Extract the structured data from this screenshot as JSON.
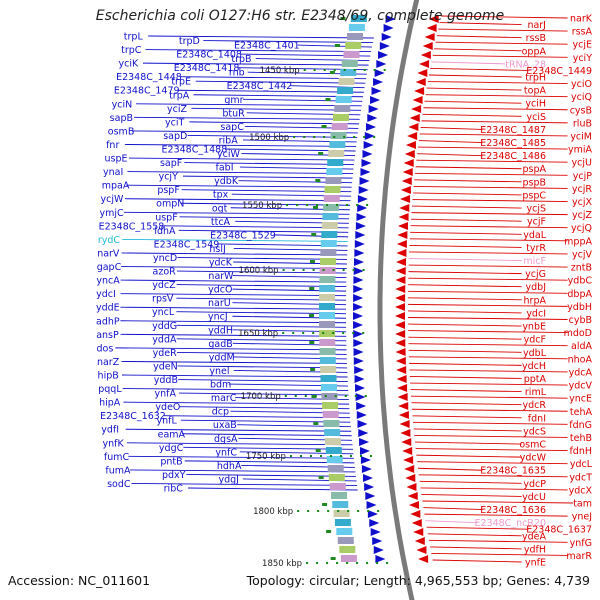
{
  "title": "Escherichia coli O127:H6 str. E2348/69, complete genome",
  "accession_label": "Accession: NC_011601",
  "summary_label": "Topology: circular; Length: 4,965,553 bp; Genes: 4,739",
  "colors": {
    "forward_strand": "#1010cc",
    "reverse_strand": "#dd0000",
    "rna_gene": "#22b8dd",
    "ncrna_gene": "#ee99cc",
    "backbone": "#7a7a7a",
    "tick_dot": "#118811"
  },
  "ticks": [
    {
      "label": "1450 kbp"
    },
    {
      "label": "1500 kbp"
    },
    {
      "label": "1550 kbp"
    },
    {
      "label": "1600 kbp"
    },
    {
      "label": "1650 kbp"
    },
    {
      "label": "1700 kbp"
    },
    {
      "label": "1750 kbp"
    },
    {
      "label": "1800 kbp"
    },
    {
      "label": "1850 kbp"
    }
  ],
  "forward_genes": [
    {
      "label": "trpL",
      "color": "blue"
    },
    {
      "label": "trpD",
      "color": "blue"
    },
    {
      "label": "E2348C_1401",
      "color": "blue"
    },
    {
      "label": "trpC",
      "color": "blue"
    },
    {
      "label": "E2348C_1408",
      "color": "blue"
    },
    {
      "label": "trpB",
      "color": "blue"
    },
    {
      "label": "yciK",
      "color": "blue"
    },
    {
      "label": "E2348C_1418",
      "color": "blue"
    },
    {
      "label": "rnb",
      "color": "blue"
    },
    {
      "label": "E2348C_1448",
      "color": "blue"
    },
    {
      "label": "trpE",
      "color": "blue"
    },
    {
      "label": "E2348C_1442",
      "color": "blue"
    },
    {
      "label": "E2348C_1479",
      "color": "blue"
    },
    {
      "label": "trpA",
      "color": "blue"
    },
    {
      "label": "gmr",
      "color": "blue"
    },
    {
      "label": "yciN",
      "color": "blue"
    },
    {
      "label": "yciZ",
      "color": "blue"
    },
    {
      "label": "btuR",
      "color": "blue"
    },
    {
      "label": "sapB",
      "color": "blue"
    },
    {
      "label": "yciT",
      "color": "blue"
    },
    {
      "label": "sapC",
      "color": "blue"
    },
    {
      "label": "osmB",
      "color": "blue"
    },
    {
      "label": "sapD",
      "color": "blue"
    },
    {
      "label": "ribA",
      "color": "blue"
    },
    {
      "label": "fnr",
      "color": "blue"
    },
    {
      "label": "E2348C_1488",
      "color": "blue"
    },
    {
      "label": "yciW",
      "color": "blue"
    },
    {
      "label": "uspE",
      "color": "blue"
    },
    {
      "label": "sapF",
      "color": "blue"
    },
    {
      "label": "fabI",
      "color": "blue"
    },
    {
      "label": "ynaI",
      "color": "blue"
    },
    {
      "label": "ycjY",
      "color": "blue"
    },
    {
      "label": "ydbK",
      "color": "blue"
    },
    {
      "label": "mpaA",
      "color": "blue"
    },
    {
      "label": "pspF",
      "color": "blue"
    },
    {
      "label": "tpx",
      "color": "blue"
    },
    {
      "label": "ycjW",
      "color": "blue"
    },
    {
      "label": "ompN",
      "color": "blue"
    },
    {
      "label": "ogt",
      "color": "blue"
    },
    {
      "label": "ymjC",
      "color": "blue"
    },
    {
      "label": "uspF",
      "color": "blue"
    },
    {
      "label": "ttcA",
      "color": "blue"
    },
    {
      "label": "E2348C_1558",
      "color": "blue"
    },
    {
      "label": "ldhA",
      "color": "blue"
    },
    {
      "label": "E2348C_1529",
      "color": "blue"
    },
    {
      "label": "rydC",
      "color": "cyan"
    },
    {
      "label": "E2348C_1549",
      "color": "blue"
    },
    {
      "label": "hslJ",
      "color": "blue"
    },
    {
      "label": "narV",
      "color": "blue"
    },
    {
      "label": "yncD",
      "color": "blue"
    },
    {
      "label": "ydcK",
      "color": "blue"
    },
    {
      "label": "gapC",
      "color": "blue"
    },
    {
      "label": "azoR",
      "color": "blue"
    },
    {
      "label": "narW",
      "color": "blue"
    },
    {
      "label": "yncA",
      "color": "blue"
    },
    {
      "label": "ydcZ",
      "color": "blue"
    },
    {
      "label": "ydcO",
      "color": "blue"
    },
    {
      "label": "ydcI",
      "color": "blue"
    },
    {
      "label": "rpsV",
      "color": "blue"
    },
    {
      "label": "narU",
      "color": "blue"
    },
    {
      "label": "yddE",
      "color": "blue"
    },
    {
      "label": "yncL",
      "color": "blue"
    },
    {
      "label": "yncJ",
      "color": "blue"
    },
    {
      "label": "adhP",
      "color": "blue"
    },
    {
      "label": "yddG",
      "color": "blue"
    },
    {
      "label": "yddH",
      "color": "blue"
    },
    {
      "label": "ansP",
      "color": "blue"
    },
    {
      "label": "yddA",
      "color": "blue"
    },
    {
      "label": "gadB",
      "color": "blue"
    },
    {
      "label": "dos",
      "color": "blue"
    },
    {
      "label": "ydeR",
      "color": "blue"
    },
    {
      "label": "yddM",
      "color": "blue"
    },
    {
      "label": "narZ",
      "color": "blue"
    },
    {
      "label": "ydeN",
      "color": "blue"
    },
    {
      "label": "ynel",
      "color": "blue"
    },
    {
      "label": "hipB",
      "color": "blue"
    },
    {
      "label": "yddB",
      "color": "blue"
    },
    {
      "label": "bdm",
      "color": "blue"
    },
    {
      "label": "pqqL",
      "color": "blue"
    },
    {
      "label": "ynfA",
      "color": "blue"
    },
    {
      "label": "marC",
      "color": "blue"
    },
    {
      "label": "hipA",
      "color": "blue"
    },
    {
      "label": "ydeO",
      "color": "blue"
    },
    {
      "label": "dcp",
      "color": "blue"
    },
    {
      "label": "E2348C_1632",
      "color": "blue"
    },
    {
      "label": "ynfL",
      "color": "blue"
    },
    {
      "label": "uxaB",
      "color": "blue"
    },
    {
      "label": "ydfI",
      "color": "blue"
    },
    {
      "label": "eamA",
      "color": "blue"
    },
    {
      "label": "dgsA",
      "color": "blue"
    },
    {
      "label": "ynfK",
      "color": "blue"
    },
    {
      "label": "ydgC",
      "color": "blue"
    },
    {
      "label": "ynfC",
      "color": "blue"
    },
    {
      "label": "fumC",
      "color": "blue"
    },
    {
      "label": "pntB",
      "color": "blue"
    },
    {
      "label": "hdhA",
      "color": "blue"
    },
    {
      "label": "fumA",
      "color": "blue"
    },
    {
      "label": "pdxY",
      "color": "blue"
    },
    {
      "label": "ydgJ",
      "color": "blue"
    },
    {
      "label": "sodC",
      "color": "blue"
    },
    {
      "label": "ribC",
      "color": "blue"
    }
  ],
  "reverse_genes": [
    {
      "label": "narK",
      "color": "red"
    },
    {
      "label": "narJ",
      "color": "red"
    },
    {
      "label": "rssA",
      "color": "red"
    },
    {
      "label": "rssB",
      "color": "red"
    },
    {
      "label": "ycjE",
      "color": "red"
    },
    {
      "label": "oppA",
      "color": "red"
    },
    {
      "label": "yciY",
      "color": "red"
    },
    {
      "label": "tRNA_28",
      "color": "pink"
    },
    {
      "label": "E2348C_1449",
      "color": "red"
    },
    {
      "label": "trpH",
      "color": "red"
    },
    {
      "label": "yciO",
      "color": "red"
    },
    {
      "label": "topA",
      "color": "red"
    },
    {
      "label": "yciQ",
      "color": "red"
    },
    {
      "label": "yciH",
      "color": "red"
    },
    {
      "label": "cysB",
      "color": "red"
    },
    {
      "label": "yciS",
      "color": "red"
    },
    {
      "label": "rluB",
      "color": "red"
    },
    {
      "label": "E2348C_1487",
      "color": "red"
    },
    {
      "label": "yciM",
      "color": "red"
    },
    {
      "label": "E2348C_1485",
      "color": "red"
    },
    {
      "label": "ymiA",
      "color": "red"
    },
    {
      "label": "E2348C_1486",
      "color": "red"
    },
    {
      "label": "ycjU",
      "color": "red"
    },
    {
      "label": "pspA",
      "color": "red"
    },
    {
      "label": "ycjP",
      "color": "red"
    },
    {
      "label": "pspB",
      "color": "red"
    },
    {
      "label": "ycjR",
      "color": "red"
    },
    {
      "label": "pspC",
      "color": "red"
    },
    {
      "label": "ycjX",
      "color": "red"
    },
    {
      "label": "ycjS",
      "color": "red"
    },
    {
      "label": "ycjZ",
      "color": "red"
    },
    {
      "label": "ycjF",
      "color": "red"
    },
    {
      "label": "ycjQ",
      "color": "red"
    },
    {
      "label": "ydaL",
      "color": "red"
    },
    {
      "label": "mppA",
      "color": "red"
    },
    {
      "label": "tyrR",
      "color": "red"
    },
    {
      "label": "ycjV",
      "color": "red"
    },
    {
      "label": "micF",
      "color": "pink"
    },
    {
      "label": "zntB",
      "color": "red"
    },
    {
      "label": "ycjG",
      "color": "red"
    },
    {
      "label": "ydbC",
      "color": "red"
    },
    {
      "label": "ydbJ",
      "color": "red"
    },
    {
      "label": "dbpA",
      "color": "red"
    },
    {
      "label": "hrpA",
      "color": "red"
    },
    {
      "label": "ydbH",
      "color": "red"
    },
    {
      "label": "ydcI",
      "color": "red"
    },
    {
      "label": "cybB",
      "color": "red"
    },
    {
      "label": "ynbE",
      "color": "red"
    },
    {
      "label": "mdoD",
      "color": "red"
    },
    {
      "label": "ydcF",
      "color": "red"
    },
    {
      "label": "aldA",
      "color": "red"
    },
    {
      "label": "ydbL",
      "color": "red"
    },
    {
      "label": "nhoA",
      "color": "red"
    },
    {
      "label": "ydcH",
      "color": "red"
    },
    {
      "label": "ydcA",
      "color": "red"
    },
    {
      "label": "pptA",
      "color": "red"
    },
    {
      "label": "ydcV",
      "color": "red"
    },
    {
      "label": "rimL",
      "color": "red"
    },
    {
      "label": "yncE",
      "color": "red"
    },
    {
      "label": "ydcR",
      "color": "red"
    },
    {
      "label": "tehA",
      "color": "red"
    },
    {
      "label": "fdnI",
      "color": "red"
    },
    {
      "label": "fdnG",
      "color": "red"
    },
    {
      "label": "ydcS",
      "color": "red"
    },
    {
      "label": "tehB",
      "color": "red"
    },
    {
      "label": "osmC",
      "color": "red"
    },
    {
      "label": "fdnH",
      "color": "red"
    },
    {
      "label": "ydcW",
      "color": "red"
    },
    {
      "label": "ydcL",
      "color": "red"
    },
    {
      "label": "E2348C_1635",
      "color": "red"
    },
    {
      "label": "ydcT",
      "color": "red"
    },
    {
      "label": "ydcP",
      "color": "red"
    },
    {
      "label": "ydcX",
      "color": "red"
    },
    {
      "label": "ydcU",
      "color": "red"
    },
    {
      "label": "tam",
      "color": "red"
    },
    {
      "label": "E2348C_1636",
      "color": "red"
    },
    {
      "label": "yneJ",
      "color": "red"
    },
    {
      "label": "E2348C_ncR20",
      "color": "pink"
    },
    {
      "label": "E2348C_1637",
      "color": "red"
    },
    {
      "label": "ydeA",
      "color": "red"
    },
    {
      "label": "ynfG",
      "color": "red"
    },
    {
      "label": "ydfH",
      "color": "red"
    },
    {
      "label": "marR",
      "color": "red"
    },
    {
      "label": "ynfE",
      "color": "red"
    }
  ]
}
